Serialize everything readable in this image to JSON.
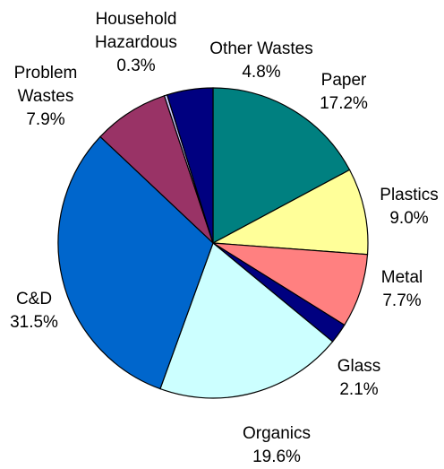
{
  "chart_data": {
    "type": "pie",
    "title": "",
    "start_angle_deg": 0,
    "direction": "clockwise",
    "slices": [
      {
        "label": "Paper",
        "value": 17.2,
        "value_label": "17.2%",
        "color": "#008080"
      },
      {
        "label": "Plastics",
        "value": 9.0,
        "value_label": "9.0%",
        "color": "#FFFF99"
      },
      {
        "label": "Metal",
        "value": 7.7,
        "value_label": "7.7%",
        "color": "#FF8080"
      },
      {
        "label": "Glass",
        "value": 2.1,
        "value_label": "2.1%",
        "color": "#000080"
      },
      {
        "label": "Organics",
        "value": 19.6,
        "value_label": "19.6%",
        "color": "#CCFFFF"
      },
      {
        "label": "C&D",
        "value": 31.5,
        "value_label": "31.5%",
        "color": "#0066CC"
      },
      {
        "label": "Problem Wastes",
        "label_lines": [
          "Problem",
          "Wastes"
        ],
        "value": 7.9,
        "value_label": "7.9%",
        "color": "#993366"
      },
      {
        "label": "Household Hazardous",
        "label_lines": [
          "Household",
          "Hazardous"
        ],
        "value": 0.3,
        "value_label": "0.3%",
        "color": "#CCCCFF"
      },
      {
        "label": "Other Wastes",
        "value": 4.8,
        "value_label": "4.8%",
        "color": "#000080"
      }
    ],
    "legend": "none"
  }
}
